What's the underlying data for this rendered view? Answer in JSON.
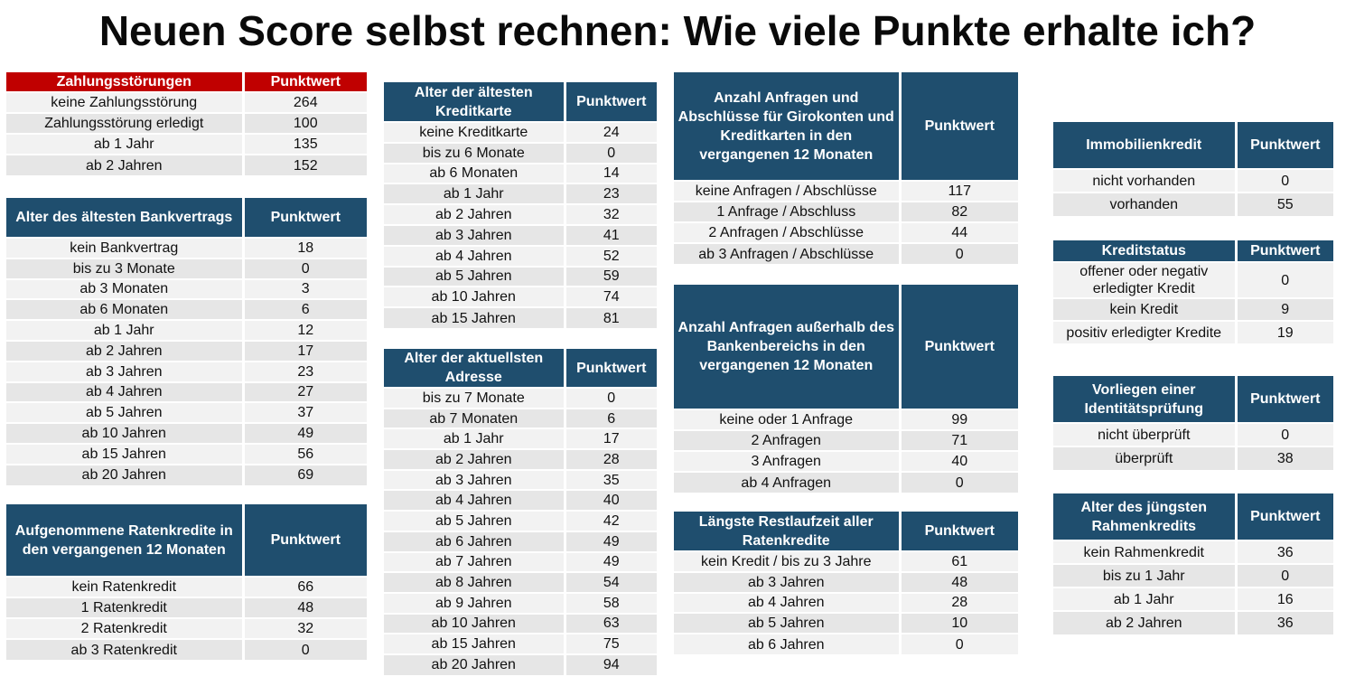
{
  "title": "Neuen Score selbst rechnen: Wie viele Punkte erhalte ich?",
  "colors": {
    "header": "#1f4e6e",
    "header_highlight": "#c00000",
    "row_light": "#f2f2f2",
    "row_dark": "#e6e6e6"
  },
  "tables": {
    "t1": {
      "header": "Zahlungsstörungen",
      "value_header": "Punktwert",
      "rows": [
        {
          "label": "keine Zahlungsstörung",
          "value": "264"
        },
        {
          "label": "Zahlungsstörung erledigt",
          "value": "100"
        },
        {
          "label": "ab 1 Jahr",
          "value": "135"
        },
        {
          "label": "ab 2 Jahren",
          "value": "152"
        }
      ]
    },
    "t2": {
      "header": "Alter des ältesten Bankvertrags",
      "value_header": "Punktwert",
      "rows": [
        {
          "label": "kein Bankvertrag",
          "value": "18"
        },
        {
          "label": "bis zu 3 Monate",
          "value": "0"
        },
        {
          "label": "ab 3 Monaten",
          "value": "3"
        },
        {
          "label": "ab 6 Monaten",
          "value": "6"
        },
        {
          "label": "ab 1 Jahr",
          "value": "12"
        },
        {
          "label": "ab 2 Jahren",
          "value": "17"
        },
        {
          "label": "ab 3 Jahren",
          "value": "23"
        },
        {
          "label": "ab 4 Jahren",
          "value": "27"
        },
        {
          "label": "ab 5 Jahren",
          "value": "37"
        },
        {
          "label": "ab 10 Jahren",
          "value": "49"
        },
        {
          "label": "ab 15 Jahren",
          "value": "56"
        },
        {
          "label": "ab 20 Jahren",
          "value": "69"
        }
      ]
    },
    "t3": {
      "header": "Aufgenommene Ratenkredite in den vergangenen 12 Monaten",
      "value_header": "Punktwert",
      "rows": [
        {
          "label": "kein Ratenkredit",
          "value": "66"
        },
        {
          "label": "1 Ratenkredit",
          "value": "48"
        },
        {
          "label": "2 Ratenkredit",
          "value": "32"
        },
        {
          "label": "ab 3 Ratenkredit",
          "value": "0"
        }
      ]
    },
    "t4": {
      "header": "Alter der ältesten Kreditkarte",
      "value_header": "Punktwert",
      "rows": [
        {
          "label": "keine Kreditkarte",
          "value": "24"
        },
        {
          "label": "bis zu 6 Monate",
          "value": "0"
        },
        {
          "label": "ab 6 Monaten",
          "value": "14"
        },
        {
          "label": "ab 1 Jahr",
          "value": "23"
        },
        {
          "label": "ab 2 Jahren",
          "value": "32"
        },
        {
          "label": "ab 3 Jahren",
          "value": "41"
        },
        {
          "label": "ab 4 Jahren",
          "value": "52"
        },
        {
          "label": "ab 5 Jahren",
          "value": "59"
        },
        {
          "label": "ab 10 Jahren",
          "value": "74"
        },
        {
          "label": "ab 15 Jahren",
          "value": "81"
        }
      ]
    },
    "t5": {
      "header": "Alter der aktuellsten Adresse",
      "value_header": "Punktwert",
      "rows": [
        {
          "label": "bis zu 7 Monate",
          "value": "0"
        },
        {
          "label": "ab 7 Monaten",
          "value": "6"
        },
        {
          "label": "ab 1 Jahr",
          "value": "17"
        },
        {
          "label": "ab 2 Jahren",
          "value": "28"
        },
        {
          "label": "ab 3 Jahren",
          "value": "35"
        },
        {
          "label": "ab 4 Jahren",
          "value": "40"
        },
        {
          "label": "ab 5 Jahren",
          "value": "42"
        },
        {
          "label": "ab 6 Jahren",
          "value": "49"
        },
        {
          "label": "ab 7 Jahren",
          "value": "49"
        },
        {
          "label": "ab 8 Jahren",
          "value": "54"
        },
        {
          "label": "ab 9 Jahren",
          "value": "58"
        },
        {
          "label": "ab 10 Jahren",
          "value": "63"
        },
        {
          "label": "ab 15 Jahren",
          "value": "75"
        },
        {
          "label": "ab 20 Jahren",
          "value": "94"
        }
      ]
    },
    "t6": {
      "header": "Anzahl Anfragen und Abschlüsse für Girokonten und Kreditkarten in den vergangenen 12 Monaten",
      "value_header": "Punktwert",
      "rows": [
        {
          "label": "keine Anfragen / Abschlüsse",
          "value": "117"
        },
        {
          "label": "1 Anfrage / Abschluss",
          "value": "82"
        },
        {
          "label": "2 Anfragen / Abschlüsse",
          "value": "44"
        },
        {
          "label": "ab 3 Anfragen / Abschlüsse",
          "value": "0"
        }
      ]
    },
    "t7": {
      "header": "Anzahl Anfragen außerhalb des Bankenbereichs in den vergangenen 12 Monaten",
      "value_header": "Punktwert",
      "rows": [
        {
          "label": "keine oder 1 Anfrage",
          "value": "99"
        },
        {
          "label": "2 Anfragen",
          "value": "71"
        },
        {
          "label": "3 Anfragen",
          "value": "40"
        },
        {
          "label": "ab 4 Anfragen",
          "value": "0"
        }
      ]
    },
    "t8": {
      "header": "Längste Restlaufzeit aller Ratenkredite",
      "value_header": "Punktwert",
      "rows": [
        {
          "label": "kein Kredit / bis zu 3 Jahre",
          "value": "61"
        },
        {
          "label": "ab 3 Jahren",
          "value": "48"
        },
        {
          "label": "ab 4 Jahren",
          "value": "28"
        },
        {
          "label": "ab 5 Jahren",
          "value": "10"
        },
        {
          "label": "ab 6 Jahren",
          "value": "0"
        }
      ]
    },
    "t9": {
      "header": "Immobilienkredit",
      "value_header": "Punktwert",
      "rows": [
        {
          "label": "nicht vorhanden",
          "value": "0"
        },
        {
          "label": "vorhanden",
          "value": "55"
        }
      ]
    },
    "t10": {
      "header": "Kreditstatus",
      "value_header": "Punktwert",
      "rows": [
        {
          "label": "offener oder negativ erledigter Kredit",
          "value": "0"
        },
        {
          "label": "kein Kredit",
          "value": "9"
        },
        {
          "label": "positiv erledigter Kredite",
          "value": "19"
        }
      ]
    },
    "t11": {
      "header": "Vorliegen einer Identitätsprüfung",
      "value_header": "Punktwert",
      "rows": [
        {
          "label": "nicht überprüft",
          "value": "0"
        },
        {
          "label": "überprüft",
          "value": "38"
        }
      ]
    },
    "t12": {
      "header": "Alter des jüngsten Rahmenkredits",
      "value_header": "Punktwert",
      "rows": [
        {
          "label": "kein Rahmenkredit",
          "value": "36"
        },
        {
          "label": "bis zu 1 Jahr",
          "value": "0"
        },
        {
          "label": "ab 1 Jahr",
          "value": "16"
        },
        {
          "label": "ab 2 Jahren",
          "value": "36"
        }
      ]
    }
  }
}
